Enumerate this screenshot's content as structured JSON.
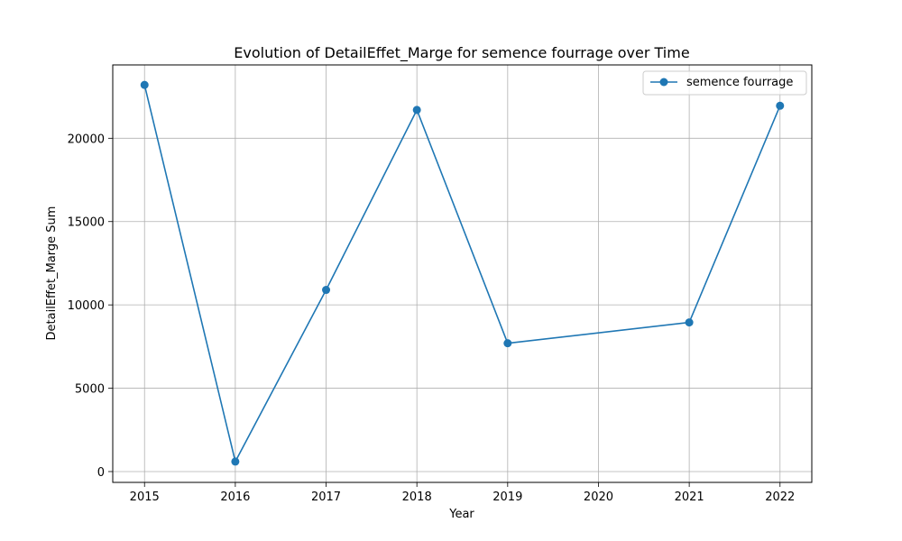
{
  "chart_data": {
    "type": "line",
    "title": "Evolution of DetailEffet_Marge for semence fourrage over Time",
    "xlabel": "Year",
    "ylabel": "DetailEffet_Marge Sum",
    "x_ticks": [
      2015,
      2016,
      2017,
      2018,
      2019,
      2020,
      2021,
      2022
    ],
    "y_ticks": [
      0,
      5000,
      10000,
      15000,
      20000
    ],
    "xlim": [
      2014.65,
      2022.35
    ],
    "ylim": [
      -650,
      24400
    ],
    "grid": true,
    "legend_position": "top-right",
    "series": [
      {
        "name": "semence fourrage",
        "color": "#1f77b4",
        "marker": "circle",
        "x": [
          2015,
          2016,
          2017,
          2018,
          2019,
          2021,
          2022
        ],
        "y": [
          23200,
          600,
          10900,
          21700,
          7700,
          8950,
          21950
        ]
      }
    ]
  }
}
